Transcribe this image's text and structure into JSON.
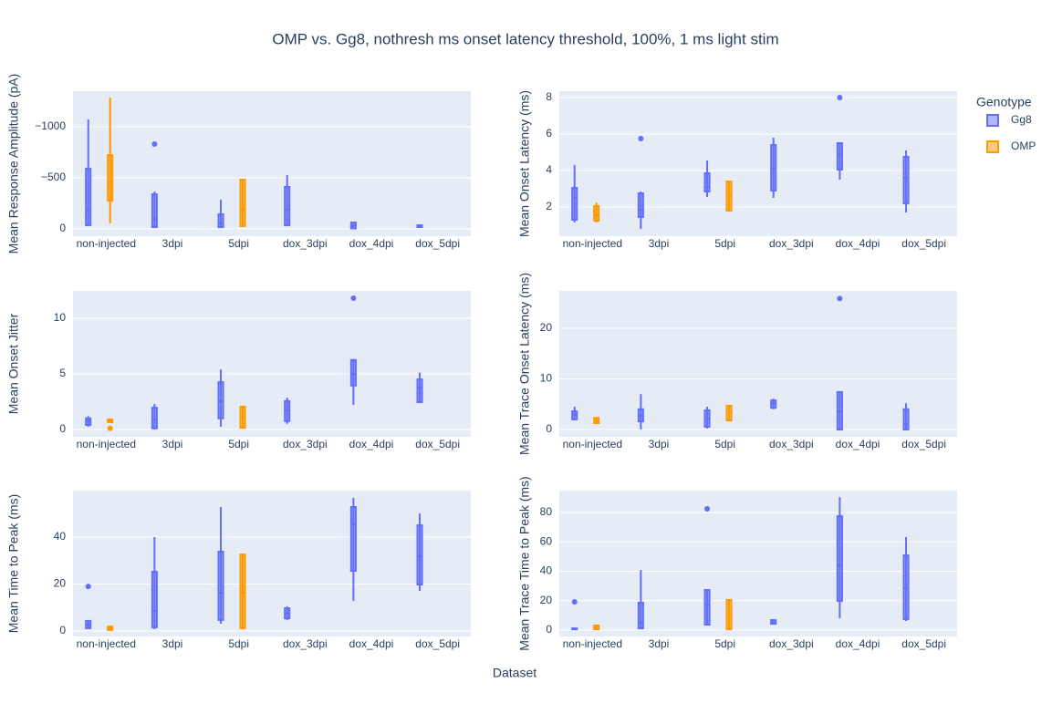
{
  "title": "OMP vs. Gg8, nothresh ms onset latency threshold, 100%, 1 ms light stim",
  "x_label": "Dataset",
  "legend_title": "Genotype",
  "chart_data": [
    {
      "type": "box",
      "y_label": "Mean Response Amplitude (pA)",
      "categories": [
        "non-injected",
        "3dpi",
        "5dpi",
        "dox_3dpi",
        "dox_4dpi",
        "dox_5dpi"
      ],
      "ylim": [
        71,
        -1348
      ],
      "yticks": [
        0,
        {
          "value": -500,
          "label": "−500"
        },
        {
          "value": -1000,
          "label": "−1000"
        }
      ],
      "grid": true,
      "series": [
        {
          "name": "Gg8",
          "color": "#636efa",
          "min": [
            -1071,
            -366,
            -286,
            -527,
            -63,
            -36
          ],
          "q1": [
            -589,
            -339,
            -143,
            -411,
            -63,
            -36
          ],
          "median": [
            -188,
            -98,
            -54,
            -188,
            -30,
            -27
          ],
          "q3": [
            -36,
            -18,
            -18,
            -36,
            -5,
            -18
          ],
          "max": [
            -36,
            -9,
            -9,
            -27,
            -5,
            -18
          ],
          "outliers": [
            [],
            [
              -830
            ],
            [],
            [],
            [],
            []
          ]
        },
        {
          "name": "OMP",
          "color": "#ff9900",
          "min": [
            -1286,
            null,
            -482,
            null,
            null,
            null
          ],
          "q1": [
            -723,
            null,
            -482,
            null,
            null,
            null
          ],
          "median": [
            -455,
            null,
            -188,
            null,
            null,
            null
          ],
          "q3": [
            -277,
            null,
            -27,
            null,
            null,
            null
          ],
          "max": [
            -54,
            null,
            -27,
            null,
            null,
            null
          ],
          "outliers": [
            [],
            [],
            [],
            [],
            [],
            []
          ]
        }
      ]
    },
    {
      "type": "box",
      "y_label": "Mean Onset Latency (ms)",
      "categories": [
        "non-injected",
        "3dpi",
        "5dpi",
        "dox_3dpi",
        "dox_4dpi",
        "dox_5dpi"
      ],
      "ylim": [
        0.4,
        8.35
      ],
      "yticks": [
        2,
        4,
        6,
        8
      ],
      "grid": true,
      "series": [
        {
          "name": "Gg8",
          "color": "#636efa",
          "min": [
            1.15,
            0.8,
            2.55,
            2.5,
            3.5,
            1.7
          ],
          "q1": [
            1.3,
            1.45,
            2.85,
            2.9,
            4.05,
            2.2
          ],
          "median": [
            2.5,
            1.85,
            3.1,
            4.1,
            4.85,
            3.6
          ],
          "q3": [
            3.05,
            2.75,
            3.85,
            5.4,
            5.5,
            4.75
          ],
          "max": [
            4.3,
            2.85,
            4.55,
            5.8,
            5.5,
            5.1
          ],
          "outliers": [
            [],
            [
              5.75
            ],
            [],
            [],
            [
              8.0
            ],
            []
          ]
        },
        {
          "name": "OMP",
          "color": "#ff9900",
          "min": [
            1.15,
            null,
            1.8,
            null,
            null,
            null
          ],
          "q1": [
            1.25,
            null,
            1.8,
            null,
            null,
            null
          ],
          "median": [
            1.55,
            null,
            2.6,
            null,
            null,
            null
          ],
          "q3": [
            2.05,
            null,
            3.4,
            null,
            null,
            null
          ],
          "max": [
            2.25,
            null,
            3.4,
            null,
            null,
            null
          ],
          "outliers": [
            [],
            [],
            [],
            [],
            [],
            []
          ]
        }
      ]
    },
    {
      "type": "box",
      "y_label": "Mean Onset Jitter",
      "categories": [
        "non-injected",
        "3dpi",
        "5dpi",
        "dox_3dpi",
        "dox_4dpi",
        "dox_5dpi"
      ],
      "ylim": [
        -0.66,
        12.46
      ],
      "yticks": [
        0,
        5,
        10
      ],
      "grid": true,
      "series": [
        {
          "name": "Gg8",
          "color": "#636efa",
          "min": [
            0.25,
            0,
            0.25,
            0.5,
            2.2,
            2.4
          ],
          "q1": [
            0.4,
            0.1,
            1.0,
            0.75,
            3.95,
            2.45
          ],
          "median": [
            0.75,
            0.9,
            2.55,
            1.7,
            5.0,
            3.75
          ],
          "q3": [
            1.0,
            1.95,
            4.25,
            2.55,
            6.25,
            4.5
          ],
          "max": [
            1.2,
            2.3,
            5.4,
            2.85,
            6.25,
            5.1
          ],
          "outliers": [
            [],
            [],
            [],
            [],
            [
              11.8
            ],
            []
          ]
        },
        {
          "name": "OMP",
          "color": "#ff9900",
          "min": [
            0.65,
            null,
            0.15,
            null,
            null,
            null
          ],
          "q1": [
            0.65,
            null,
            0.15,
            null,
            null,
            null
          ],
          "median": [
            0.8,
            null,
            1.2,
            null,
            null,
            null
          ],
          "q3": [
            0.9,
            null,
            2.05,
            null,
            null,
            null
          ],
          "max": [
            0.9,
            null,
            2.05,
            null,
            null,
            null
          ],
          "outliers": [
            [
              0.1
            ],
            [],
            [],
            [],
            [],
            []
          ]
        }
      ]
    },
    {
      "type": "box",
      "y_label": "Mean Trace Onset Latency (ms)",
      "categories": [
        "non-injected",
        "3dpi",
        "5dpi",
        "dox_3dpi",
        "dox_4dpi",
        "dox_5dpi"
      ],
      "ylim": [
        -1.44,
        27.4
      ],
      "yticks": [
        0,
        10,
        20
      ],
      "grid": true,
      "series": [
        {
          "name": "Gg8",
          "color": "#636efa",
          "min": [
            1.8,
            0,
            0.2,
            4.0,
            0,
            0
          ],
          "q1": [
            2.0,
            1.6,
            0.55,
            4.3,
            0,
            0
          ],
          "median": [
            2.9,
            2.7,
            2.15,
            5.2,
            3.6,
            1.1
          ],
          "q3": [
            3.6,
            4.0,
            3.8,
            5.75,
            7.4,
            4.0
          ],
          "max": [
            4.5,
            7.0,
            4.5,
            6.1,
            7.4,
            5.2
          ],
          "outliers": [
            [],
            [],
            [],
            [],
            [
              25.9
            ],
            []
          ]
        },
        {
          "name": "OMP",
          "color": "#ff9900",
          "min": [
            1.25,
            null,
            1.8,
            null,
            null,
            null
          ],
          "q1": [
            1.25,
            null,
            1.8,
            null,
            null,
            null
          ],
          "median": [
            1.8,
            null,
            3.4,
            null,
            null,
            null
          ],
          "q3": [
            2.3,
            null,
            4.7,
            null,
            null,
            null
          ],
          "max": [
            2.3,
            null,
            4.7,
            null,
            null,
            null
          ],
          "outliers": [
            [],
            [],
            [],
            [],
            [],
            []
          ]
        }
      ]
    },
    {
      "type": "box",
      "y_label": "Mean Time to Peak (ms)",
      "categories": [
        "non-injected",
        "3dpi",
        "5dpi",
        "dox_3dpi",
        "dox_4dpi",
        "dox_5dpi"
      ],
      "ylim": [
        -2.33,
        59.8
      ],
      "yticks": [
        0,
        20,
        40
      ],
      "grid": true,
      "series": [
        {
          "name": "Gg8",
          "color": "#636efa",
          "min": [
            1.2,
            0.8,
            3.1,
            4.7,
            12.8,
            17.1
          ],
          "q1": [
            1.2,
            1.6,
            4.7,
            5.4,
            25.6,
            19.8
          ],
          "median": [
            2.7,
            8.5,
            16.3,
            7.4,
            45.4,
            31.8
          ],
          "q3": [
            4.3,
            25.2,
            33.8,
            9.7,
            52.8,
            45
          ],
          "max": [
            4.3,
            40,
            52.8,
            10.5,
            56.7,
            50.1
          ],
          "outliers": [
            [
              19.0
            ],
            [],
            [],
            [],
            [],
            []
          ]
        },
        {
          "name": "OMP",
          "color": "#ff9900",
          "min": [
            0.4,
            null,
            1.2,
            null,
            null,
            null
          ],
          "q1": [
            0.4,
            null,
            1.2,
            null,
            null,
            null
          ],
          "median": [
            1.2,
            null,
            16.3,
            null,
            null,
            null
          ],
          "q3": [
            1.9,
            null,
            32.6,
            null,
            null,
            null
          ],
          "max": [
            1.9,
            null,
            32.6,
            null,
            null,
            null
          ],
          "outliers": [
            [],
            [],
            [],
            [],
            [],
            []
          ]
        }
      ]
    },
    {
      "type": "box",
      "y_label": "Mean Trace Time to Peak (ms)",
      "categories": [
        "non-injected",
        "3dpi",
        "5dpi",
        "dox_3dpi",
        "dox_4dpi",
        "dox_5dpi"
      ],
      "ylim": [
        -4.34,
        94.9
      ],
      "yticks": [
        0,
        20,
        40,
        60,
        80
      ],
      "grid": true,
      "series": [
        {
          "name": "Gg8",
          "color": "#636efa",
          "min": [
            0.6,
            0.6,
            3.1,
            4.3,
            8.1,
            6.2
          ],
          "q1": [
            0.6,
            1.2,
            3.7,
            4.3,
            19.8,
            7.4
          ],
          "median": [
            0.9,
            5,
            17.4,
            5.6,
            44,
            28.5
          ],
          "q3": [
            1.2,
            18.6,
            27.3,
            6.8,
            77.5,
            50.9
          ],
          "max": [
            1.2,
            40.9,
            27.9,
            6.8,
            90.5,
            63.3
          ],
          "outliers": [
            [
              19.2
            ],
            [],
            [
              82.5
            ],
            [],
            [],
            []
          ]
        },
        {
          "name": "OMP",
          "color": "#ff9900",
          "min": [
            0.6,
            null,
            0.6,
            null,
            null,
            null
          ],
          "q1": [
            0.6,
            null,
            0.6,
            null,
            null,
            null
          ],
          "median": [
            1.9,
            null,
            9.9,
            null,
            null,
            null
          ],
          "q3": [
            3.1,
            null,
            20.5,
            null,
            null,
            null
          ],
          "max": [
            3.1,
            null,
            20.5,
            null,
            null,
            null
          ],
          "outliers": [
            [],
            [],
            [],
            [],
            [],
            []
          ]
        }
      ]
    }
  ]
}
